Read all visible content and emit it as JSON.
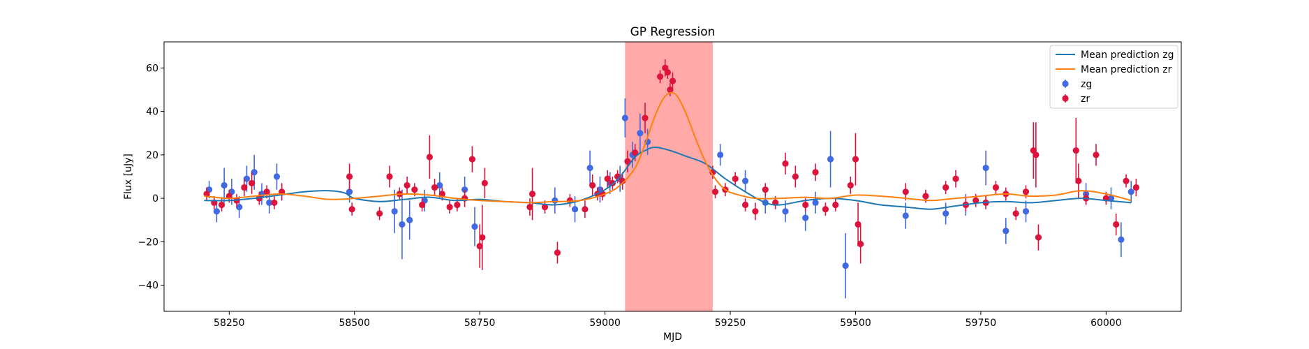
{
  "chart_data": {
    "type": "scatter",
    "title": "GP Regression",
    "xlabel": "MJD",
    "ylabel": "Flux [uJy]",
    "xlim": [
      58120,
      60150
    ],
    "ylim": [
      -52,
      72
    ],
    "xticks": [
      58250,
      58500,
      58750,
      59000,
      59250,
      59500,
      59750,
      60000
    ],
    "yticks": [
      -40,
      -20,
      0,
      20,
      40,
      60
    ],
    "grid": false,
    "legend_position": "top-right",
    "shaded_region": {
      "x0": 59040,
      "x1": 59215,
      "color": "#ff9a9a"
    },
    "colors": {
      "zg_line": "#1f77b4",
      "zr_line": "#ff7f0e",
      "zg_points": "#4169e1",
      "zr_points": "#dc143c"
    },
    "legend": [
      {
        "label": "Mean prediction zg",
        "kind": "line",
        "color": "#1f77b4"
      },
      {
        "label": "Mean prediction zr",
        "kind": "line",
        "color": "#ff7f0e"
      },
      {
        "label": "zg",
        "kind": "point",
        "color": "#4169e1"
      },
      {
        "label": "zr",
        "kind": "point",
        "color": "#dc143c"
      }
    ],
    "series": [
      {
        "name": "Mean prediction zg",
        "kind": "line",
        "color": "#1f77b4",
        "x": [
          58200,
          58250,
          58300,
          58350,
          58400,
          58450,
          58480,
          58500,
          58550,
          58600,
          58650,
          58700,
          58750,
          58800,
          58850,
          58900,
          58950,
          59000,
          59030,
          59060,
          59080,
          59100,
          59130,
          59160,
          59200,
          59240,
          59280,
          59320,
          59350,
          59400,
          59450,
          59500,
          59550,
          59600,
          59650,
          59700,
          59750,
          59800,
          59850,
          59900,
          59950,
          60000,
          60050
        ],
        "y": [
          -1,
          -1,
          0,
          1.5,
          3,
          3.5,
          2.5,
          0,
          -1.5,
          -0.5,
          0.5,
          -1,
          -0.5,
          -1.5,
          -2,
          -3,
          -1,
          4,
          10,
          19,
          22,
          23.5,
          22,
          19.5,
          16,
          9,
          3,
          -2,
          -3,
          -1,
          0,
          -1,
          -3,
          -4,
          -5,
          -3.5,
          -2,
          -1.5,
          -2,
          -1,
          0,
          -1,
          -2
        ]
      },
      {
        "name": "Mean prediction zr",
        "kind": "line",
        "color": "#ff7f0e",
        "x": [
          58200,
          58250,
          58300,
          58350,
          58400,
          58450,
          58500,
          58550,
          58600,
          58650,
          58700,
          58750,
          58800,
          58850,
          58900,
          58950,
          59000,
          59030,
          59060,
          59080,
          59100,
          59120,
          59140,
          59160,
          59180,
          59200,
          59220,
          59240,
          59260,
          59300,
          59350,
          59400,
          59450,
          59500,
          59550,
          59600,
          59650,
          59700,
          59750,
          59800,
          59850,
          59900,
          59950,
          60000,
          60050
        ],
        "y": [
          1,
          0,
          1,
          2,
          1,
          -0.5,
          0,
          1,
          2,
          1.5,
          0,
          -1,
          -1.5,
          -2,
          -1.5,
          -1,
          2,
          6,
          14,
          25,
          38,
          47,
          48,
          40,
          28,
          17,
          9,
          4,
          2,
          0,
          0,
          0.5,
          0,
          1.5,
          1,
          0,
          -1,
          0,
          1,
          2,
          1,
          1.5,
          3.5,
          2,
          -1
        ]
      },
      {
        "name": "zg",
        "kind": "errorbar",
        "color": "#4169e1",
        "x": [
          58210,
          58225,
          58240,
          58255,
          58270,
          58285,
          58300,
          58315,
          58330,
          58345,
          58490,
          58580,
          58595,
          58610,
          58640,
          58670,
          58720,
          58740,
          58900,
          58940,
          58970,
          58990,
          59010,
          59030,
          59040,
          59055,
          59070,
          59085,
          59230,
          59280,
          59320,
          59360,
          59400,
          59420,
          59450,
          59480,
          59600,
          59680,
          59720,
          59760,
          59800,
          59840,
          59960,
          60010,
          60030,
          60050
        ],
        "y": [
          4,
          -6,
          6,
          3,
          -4,
          9,
          12,
          2,
          -2,
          10,
          3,
          -6,
          -12,
          -10,
          -1,
          6,
          4,
          -13,
          -1,
          -5,
          14,
          4,
          7,
          9,
          37,
          20,
          30,
          26,
          20,
          8,
          -2,
          -6,
          -9,
          -2,
          18,
          -31,
          -8,
          -7,
          -3,
          14,
          -15,
          -6,
          2,
          0,
          -19,
          3
        ],
        "yerr": [
          4,
          5,
          8,
          6,
          5,
          6,
          8,
          5,
          5,
          6,
          5,
          10,
          16,
          9,
          5,
          6,
          6,
          9,
          6,
          6,
          8,
          6,
          5,
          6,
          9,
          6,
          9,
          6,
          5,
          5,
          5,
          5,
          6,
          5,
          13,
          15,
          6,
          5,
          5,
          8,
          6,
          5,
          5,
          5,
          8,
          5
        ]
      },
      {
        "name": "zr",
        "kind": "errorbar",
        "color": "#dc143c",
        "x": [
          58205,
          58220,
          58235,
          58250,
          58265,
          58280,
          58295,
          58310,
          58325,
          58340,
          58355,
          58490,
          58495,
          58550,
          58570,
          58590,
          58605,
          58620,
          58635,
          58650,
          58660,
          58675,
          58690,
          58705,
          58720,
          58735,
          58750,
          58755,
          58760,
          58850,
          58855,
          58880,
          58905,
          58930,
          58960,
          58975,
          58985,
          58995,
          59005,
          59015,
          59025,
          59035,
          59045,
          59060,
          59080,
          59110,
          59120,
          59125,
          59130,
          59135,
          59215,
          59220,
          59240,
          59260,
          59280,
          59300,
          59320,
          59340,
          59360,
          59380,
          59400,
          59420,
          59440,
          59460,
          59490,
          59500,
          59505,
          59510,
          59600,
          59640,
          59680,
          59700,
          59720,
          59740,
          59760,
          59780,
          59800,
          59820,
          59840,
          59855,
          59860,
          59865,
          59940,
          59945,
          59960,
          59980,
          60000,
          60020,
          60040,
          60060
        ],
        "y": [
          2,
          -2,
          -3,
          1,
          -1,
          5,
          7,
          0,
          3,
          -2,
          3,
          10,
          -5,
          -7,
          10,
          2,
          6,
          4,
          -3,
          19,
          5,
          2,
          -4,
          -3,
          0,
          18,
          -22,
          -18,
          7,
          -4,
          2,
          -4,
          -25,
          -1,
          -5,
          6,
          2,
          2,
          9,
          7,
          10,
          8,
          17,
          21,
          37,
          56,
          60,
          58,
          50,
          54,
          12,
          3,
          4,
          9,
          -3,
          -6,
          4,
          -2,
          16,
          10,
          -3,
          12,
          -5,
          -3,
          6,
          18,
          -12,
          -21,
          3,
          1,
          5,
          9,
          -3,
          -1,
          -2,
          5,
          2,
          -7,
          3,
          22,
          20,
          -18,
          22,
          8,
          0,
          20,
          0,
          -12,
          8,
          5
        ],
        "yerr": [
          3,
          3,
          3,
          3,
          3,
          4,
          5,
          3,
          3,
          3,
          4,
          6,
          3,
          3,
          5,
          3,
          4,
          3,
          3,
          10,
          4,
          3,
          3,
          3,
          4,
          6,
          10,
          15,
          7,
          4,
          12,
          3,
          5,
          3,
          4,
          5,
          3,
          3,
          4,
          3,
          3,
          4,
          5,
          4,
          7,
          3,
          4,
          3,
          3,
          4,
          3,
          3,
          3,
          3,
          3,
          4,
          3,
          3,
          5,
          5,
          3,
          4,
          3,
          3,
          4,
          12,
          10,
          9,
          4,
          3,
          3,
          4,
          3,
          3,
          3,
          3,
          3,
          3,
          3,
          13,
          15,
          6,
          15,
          8,
          3,
          5,
          3,
          5,
          3,
          4
        ]
      }
    ]
  }
}
